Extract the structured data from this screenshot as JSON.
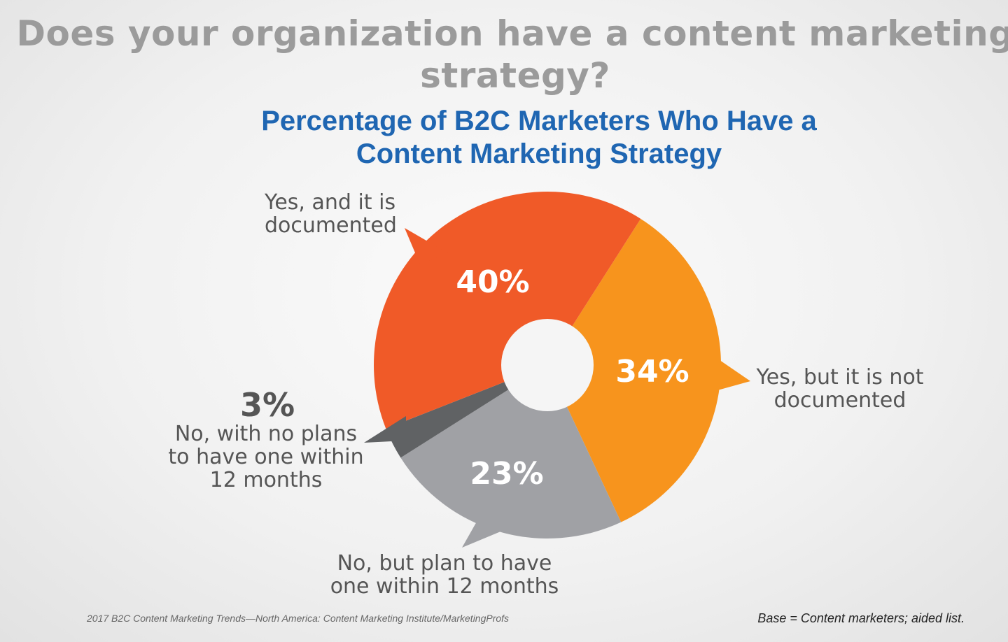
{
  "title": "Does your organization have a content marketing strategy?",
  "chart_data": {
    "type": "pie",
    "title": "Percentage of B2C Marketers Who Have a Content Marketing Strategy",
    "slices": [
      {
        "label": "Yes, and it is documented",
        "value": 40,
        "value_label": "40%",
        "color": "#f05a28"
      },
      {
        "label": "Yes, but it is not documented",
        "value": 34,
        "value_label": "34%",
        "color": "#f7941d"
      },
      {
        "label": "No, but plan to have one within 12 months",
        "value": 23,
        "value_label": "23%",
        "color": "#a0a1a5"
      },
      {
        "label": "No, with no plans to have one within 12 months",
        "value": 3,
        "value_label": "3%",
        "color": "#606264"
      }
    ],
    "donut": true
  },
  "footer": {
    "source": "2017 B2C Content Marketing Trends—North America: Content Marketing Institute/MarketingProfs",
    "base": "Base = Content marketers; aided list."
  }
}
